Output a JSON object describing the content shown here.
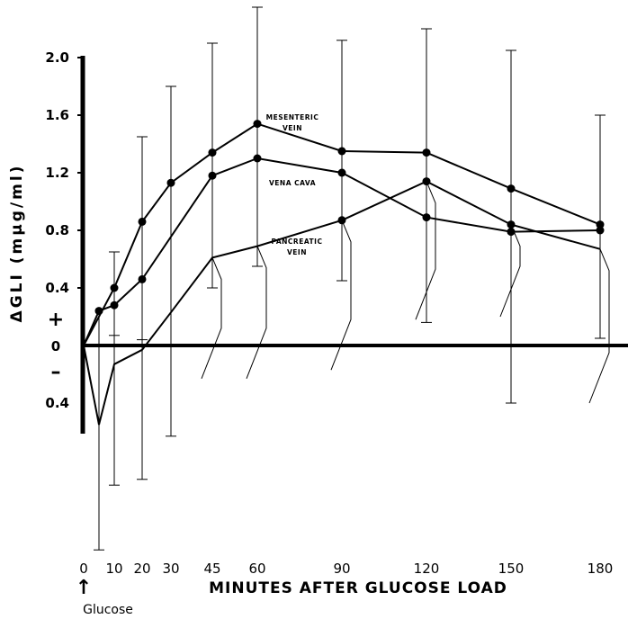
{
  "chart_data": {
    "type": "line",
    "ylabel": "ΔGLI (mμg/ml)",
    "xlabel": "MINUTES AFTER GLUCOSE LOAD",
    "x_ticks": [
      "0",
      "10",
      "20",
      "30",
      "45",
      "60",
      "90",
      "120",
      "150",
      "180"
    ],
    "x_tick_values": [
      0,
      10,
      20,
      30,
      45,
      60,
      90,
      120,
      150,
      180
    ],
    "y_ticks_positive": [
      "2.0",
      "1.6",
      "1.2",
      "0.8",
      "0.4"
    ],
    "y_ticks_positive_values": [
      2.0,
      1.6,
      1.2,
      0.8,
      0.4
    ],
    "y_tick_zero": "0",
    "y_ticks_negative": [
      "0.4"
    ],
    "y_ticks_negative_values": [
      -0.4
    ],
    "plus_sign": "+",
    "minus_sign": "–",
    "ylim": [
      -0.4,
      2.0
    ],
    "xlim": [
      0,
      180
    ],
    "glucose_arrow": "↑",
    "glucose_label": "Glucose",
    "series": [
      {
        "name": "MESENTERIC VEIN",
        "label_lines": [
          "MESENTERIC",
          "VEIN"
        ],
        "x": [
          0,
          10,
          20,
          30,
          45,
          60,
          90,
          120,
          150,
          180
        ],
        "y": [
          0,
          0.4,
          0.86,
          1.13,
          1.34,
          1.54,
          1.35,
          1.34,
          1.09,
          0.84
        ],
        "err_low": [
          null,
          0.07,
          0.04,
          -0.63,
          0.4,
          0.55,
          0.45,
          0.16,
          -0.4,
          0.05
        ],
        "err_high": [
          null,
          0.65,
          1.45,
          1.8,
          2.1,
          2.35,
          2.12,
          2.2,
          2.05,
          1.6
        ],
        "marker": "dot"
      },
      {
        "name": "VENA CAVA",
        "label_lines": [
          "VENA CAVA"
        ],
        "x": [
          0,
          5,
          10,
          20,
          45,
          60,
          90,
          120,
          150,
          180
        ],
        "y": [
          0,
          0.24,
          0.28,
          0.46,
          1.18,
          1.3,
          1.2,
          0.89,
          0.79,
          0.8
        ],
        "err_low": [],
        "err_high": [],
        "marker": "dot"
      },
      {
        "name": "PANCREATIC VEIN",
        "label_lines": [
          "PANCREATIC",
          "VEIN"
        ],
        "x": [
          0,
          5,
          10,
          20,
          30,
          45,
          60,
          90,
          120,
          150,
          180
        ],
        "y": [
          0,
          -0.55,
          -0.13,
          -0.03,
          0.23,
          0.61,
          0.69,
          0.87,
          1.14,
          0.84,
          0.67
        ],
        "err_low": [],
        "err_high": [],
        "marker": "dot-on-rising"
      }
    ]
  }
}
